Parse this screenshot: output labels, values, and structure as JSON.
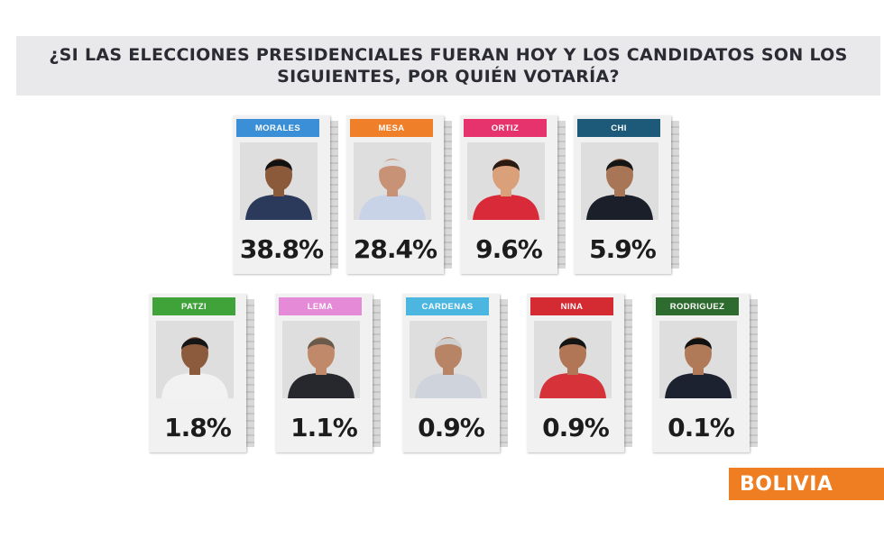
{
  "title": "¿SI LAS ELECCIONES PRESIDENCIALES FUERAN HOY Y LOS CANDIDATOS SON LOS SIGUIENTES, POR QUIÉN VOTARÍA?",
  "brand": "BOLIVIA",
  "chart_data": {
    "type": "table",
    "title": "¿SI LAS ELECCIONES PRESIDENCIALES FUERAN HOY Y LOS CANDIDATOS SON LOS SIGUIENTES, POR QUIÉN VOTARÍA?",
    "categories": [
      "MORALES",
      "MESA",
      "ORTIZ",
      "CHI",
      "PATZI",
      "LEMA",
      "CARDENAS",
      "NINA",
      "RODRIGUEZ"
    ],
    "values": [
      38.8,
      28.4,
      9.6,
      5.9,
      1.8,
      1.1,
      0.9,
      0.9,
      0.1
    ],
    "labels": [
      "38.8%",
      "28.4%",
      "9.6%",
      "5.9%",
      "1.8%",
      "1.1%",
      "0.9%",
      "0.9%",
      "0.1%"
    ],
    "label_colors": [
      "#3a8fd6",
      "#f07f2a",
      "#e6336e",
      "#1d5a7a",
      "#3fa33a",
      "#e48ad6",
      "#4bb6e0",
      "#d42a32",
      "#2e6b2e"
    ]
  }
}
